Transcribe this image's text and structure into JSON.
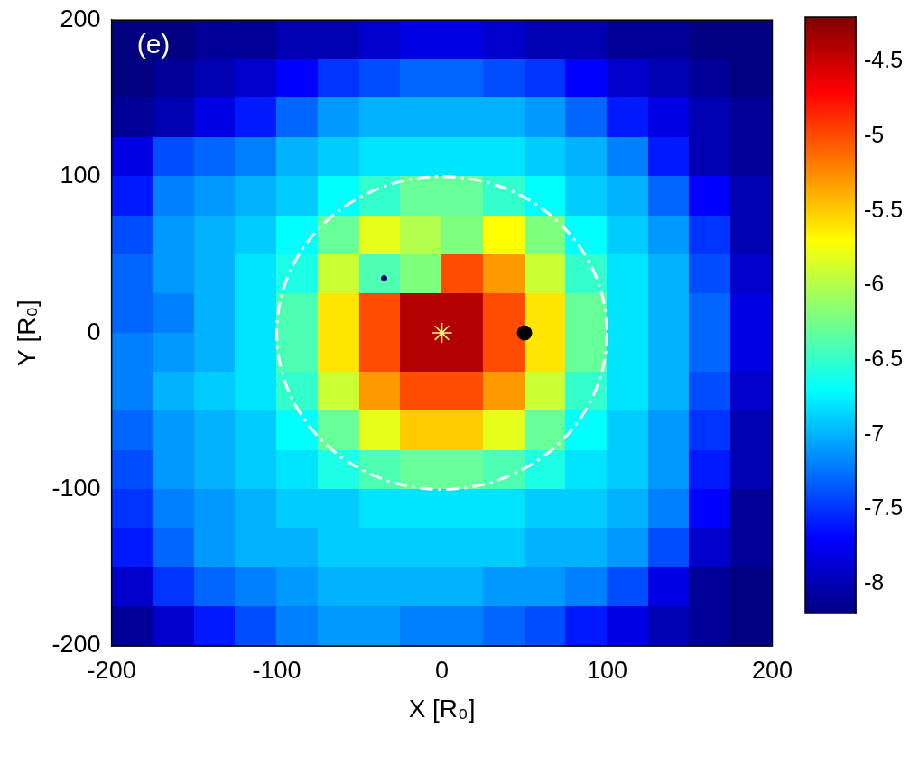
{
  "chart_data": {
    "type": "heatmap",
    "panel_label": "(e)",
    "xlabel": "X [R₀]",
    "ylabel": "Y [R₀]",
    "xlim": [
      -200,
      200
    ],
    "ylim": [
      -200,
      200
    ],
    "xticks": [
      -200,
      -100,
      0,
      100,
      200
    ],
    "yticks": [
      -200,
      -100,
      0,
      100,
      200
    ],
    "grid": false,
    "heatmap": {
      "x_centers": [
        -187.5,
        -162.5,
        -137.5,
        -112.5,
        -87.5,
        -62.5,
        -37.5,
        -12.5,
        12.5,
        37.5,
        62.5,
        87.5,
        112.5,
        137.5,
        162.5,
        187.5
      ],
      "y_centers": [
        187.5,
        162.5,
        137.5,
        112.5,
        87.5,
        62.5,
        37.5,
        12.5,
        -12.5,
        -37.5,
        -62.5,
        -87.5,
        -112.5,
        -137.5,
        -162.5,
        -187.5
      ],
      "cells": [
        [
          -8.2,
          -8.2,
          -8.1,
          -8.1,
          -8.0,
          -8.0,
          -7.9,
          -7.8,
          -7.8,
          -7.9,
          -8.0,
          -8.0,
          -8.1,
          -8.1,
          -8.2,
          -8.2
        ],
        [
          -8.2,
          -8.1,
          -8.0,
          -7.9,
          -7.7,
          -7.5,
          -7.4,
          -7.3,
          -7.3,
          -7.4,
          -7.5,
          -7.7,
          -7.9,
          -8.0,
          -8.1,
          -8.2
        ],
        [
          -8.1,
          -8.0,
          -7.8,
          -7.6,
          -7.3,
          -7.1,
          -7.0,
          -7.0,
          -7.0,
          -7.0,
          -7.1,
          -7.3,
          -7.6,
          -7.8,
          -8.0,
          -8.1
        ],
        [
          -7.8,
          -7.4,
          -7.3,
          -7.2,
          -7.0,
          -6.9,
          -6.8,
          -6.8,
          -6.8,
          -6.8,
          -6.9,
          -7.0,
          -7.2,
          -7.6,
          -8.0,
          -8.1
        ],
        [
          -7.6,
          -7.2,
          -7.1,
          -7.0,
          -6.9,
          -6.7,
          -6.5,
          -6.3,
          -6.3,
          -6.5,
          -6.7,
          -6.9,
          -7.0,
          -7.3,
          -7.7,
          -8.0
        ],
        [
          -7.4,
          -7.1,
          -7.0,
          -6.9,
          -6.7,
          -6.3,
          -5.8,
          -6.0,
          -6.2,
          -5.7,
          -6.2,
          -6.7,
          -6.9,
          -7.1,
          -7.5,
          -8.0
        ],
        [
          -7.3,
          -7.1,
          -7.0,
          -6.8,
          -6.6,
          -5.9,
          -6.4,
          -6.2,
          -5.0,
          -5.3,
          -5.9,
          -6.5,
          -6.8,
          -7.0,
          -7.4,
          -7.9
        ],
        [
          -7.3,
          -7.2,
          -7.0,
          -6.8,
          -6.4,
          -5.6,
          -5.0,
          -4.4,
          -4.4,
          -5.0,
          -5.6,
          -6.3,
          -6.8,
          -7.0,
          -7.3,
          -7.8
        ],
        [
          -7.2,
          -7.1,
          -7.0,
          -6.8,
          -6.4,
          -5.6,
          -5.0,
          -4.4,
          -4.4,
          -5.0,
          -5.6,
          -6.3,
          -6.8,
          -7.0,
          -7.3,
          -7.8
        ],
        [
          -7.2,
          -7.0,
          -6.9,
          -6.8,
          -6.5,
          -5.9,
          -5.3,
          -5.0,
          -5.0,
          -5.3,
          -5.9,
          -6.5,
          -6.8,
          -7.0,
          -7.4,
          -7.9
        ],
        [
          -7.3,
          -7.1,
          -7.0,
          -6.9,
          -6.7,
          -6.3,
          -5.8,
          -5.5,
          -5.5,
          -5.8,
          -6.3,
          -6.7,
          -6.9,
          -7.1,
          -7.5,
          -8.0
        ],
        [
          -7.4,
          -7.1,
          -7.0,
          -6.9,
          -6.8,
          -6.6,
          -6.4,
          -6.3,
          -6.3,
          -6.4,
          -6.6,
          -6.8,
          -6.9,
          -7.1,
          -7.6,
          -8.0
        ],
        [
          -7.5,
          -7.2,
          -7.1,
          -7.0,
          -6.9,
          -6.9,
          -6.8,
          -6.8,
          -6.8,
          -6.8,
          -6.9,
          -6.9,
          -7.0,
          -7.2,
          -7.7,
          -8.1
        ],
        [
          -7.6,
          -7.3,
          -7.1,
          -7.0,
          -7.0,
          -6.9,
          -6.9,
          -6.9,
          -6.9,
          -6.9,
          -7.0,
          -7.0,
          -7.1,
          -7.4,
          -7.9,
          -8.1
        ],
        [
          -7.9,
          -7.5,
          -7.3,
          -7.2,
          -7.1,
          -7.0,
          -7.0,
          -7.0,
          -7.0,
          -7.1,
          -7.1,
          -7.2,
          -7.4,
          -7.8,
          -8.1,
          -8.2
        ],
        [
          -8.1,
          -7.9,
          -7.6,
          -7.4,
          -7.2,
          -7.1,
          -7.1,
          -7.2,
          -7.2,
          -7.3,
          -7.4,
          -7.6,
          -7.8,
          -8.0,
          -8.1,
          -8.2
        ]
      ],
      "colorbar": {
        "range": [
          -8.2,
          -4.2
        ],
        "ticks": [
          -8,
          -7.5,
          -7,
          -6.5,
          -6,
          -5.5,
          -5,
          -4.5
        ]
      }
    },
    "circle": {
      "center": [
        0,
        0
      ],
      "radius": 100,
      "color": "#ffffff",
      "line_style": "dashdot"
    },
    "markers": [
      {
        "x": 0,
        "y": 0,
        "marker": "star",
        "color": "#ffff80"
      },
      {
        "x": 50,
        "y": 0,
        "marker": "circle",
        "color": "#000000"
      },
      {
        "x": -35,
        "y": 35,
        "marker": "circle",
        "color": "#000080"
      }
    ]
  }
}
